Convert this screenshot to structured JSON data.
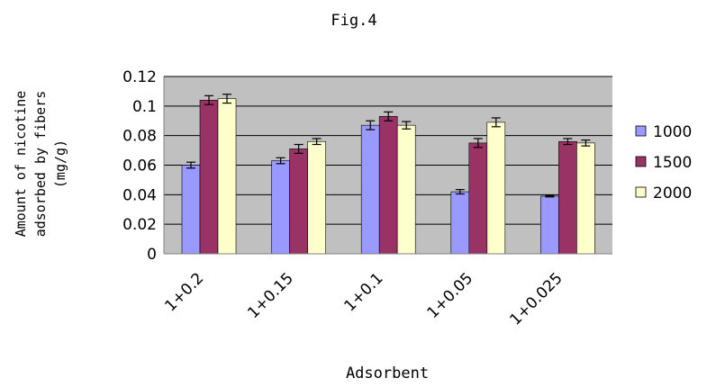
{
  "chart_data": {
    "type": "bar",
    "title": "Fig.4",
    "xlabel": "Adsorbent",
    "ylabel_lines": [
      "Amount of nicotine",
      "adsorbed by fibers",
      "(mg/g)"
    ],
    "categories": [
      "1+0.2",
      "1+0.15",
      "1+0.1",
      "1+0.05",
      "1+0.025"
    ],
    "series": [
      {
        "name": "1000",
        "color": "#9999ff",
        "values": [
          0.06,
          0.063,
          0.087,
          0.042,
          0.039
        ],
        "errors": [
          0.002,
          0.002,
          0.003,
          0.0015,
          0.0005
        ]
      },
      {
        "name": "1500",
        "color": "#993366",
        "values": [
          0.104,
          0.071,
          0.093,
          0.075,
          0.076
        ],
        "errors": [
          0.003,
          0.003,
          0.003,
          0.003,
          0.002
        ]
      },
      {
        "name": "2000",
        "color": "#ffffcc",
        "values": [
          0.105,
          0.076,
          0.087,
          0.089,
          0.075
        ],
        "errors": [
          0.003,
          0.002,
          0.0025,
          0.003,
          0.002
        ]
      }
    ],
    "yticks": [
      0,
      0.02,
      0.04,
      0.06,
      0.08,
      0.1,
      0.12
    ],
    "ytick_labels": [
      "0",
      "0.02",
      "0.04",
      "0.06",
      "0.08",
      "0.1",
      "0.12"
    ],
    "ylim": [
      0,
      0.12
    ],
    "grid": true,
    "plot_background": "#c0c0c0",
    "legend_position": "right"
  }
}
